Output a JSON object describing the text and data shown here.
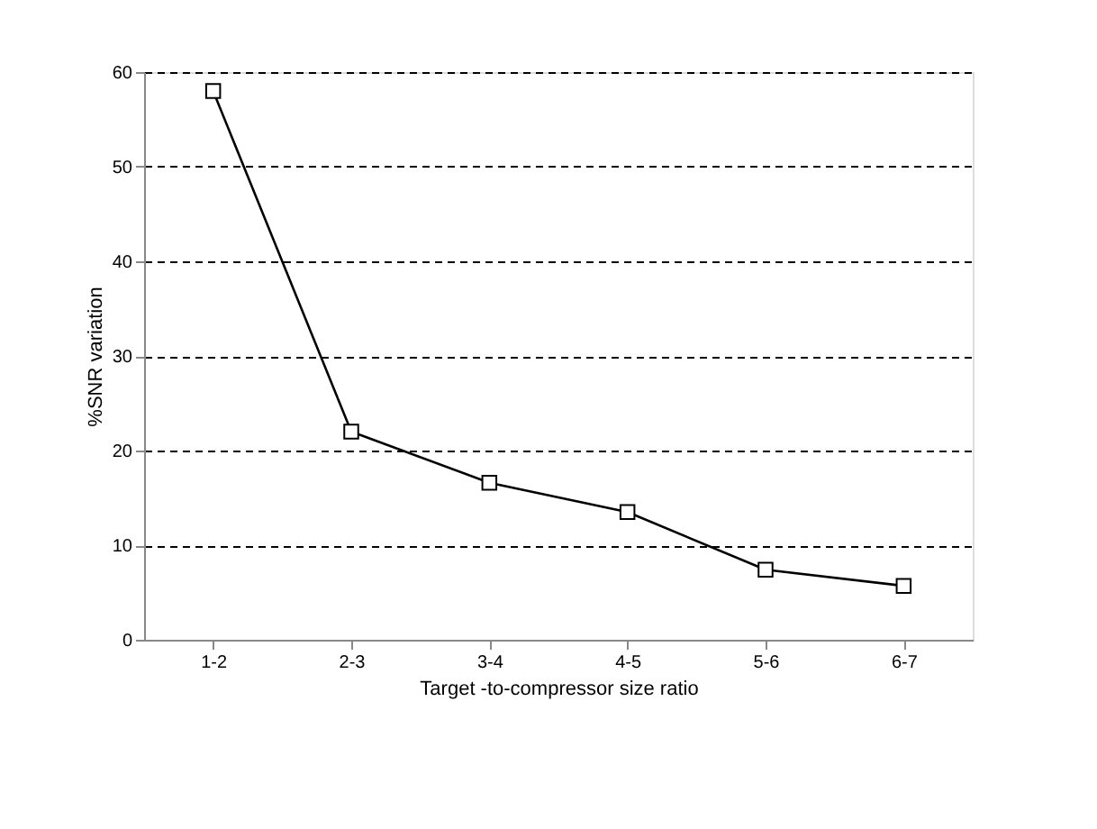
{
  "chart_data": {
    "type": "line",
    "xlabel": "Target -to-compressor size ratio",
    "ylabel": "%SNR variation",
    "categories": [
      "1-2",
      "2-3",
      "3-4",
      "4-5",
      "5-6",
      "6-7"
    ],
    "series": [
      {
        "color": "#000000",
        "values": [
          58,
          22,
          16.6,
          13.5,
          7.4,
          5.7
        ]
      }
    ],
    "ylim": [
      0,
      60
    ],
    "yticks": [
      0,
      10,
      20,
      30,
      40,
      50,
      60
    ],
    "grid": "y",
    "marker": "square",
    "line_style": "solid"
  }
}
